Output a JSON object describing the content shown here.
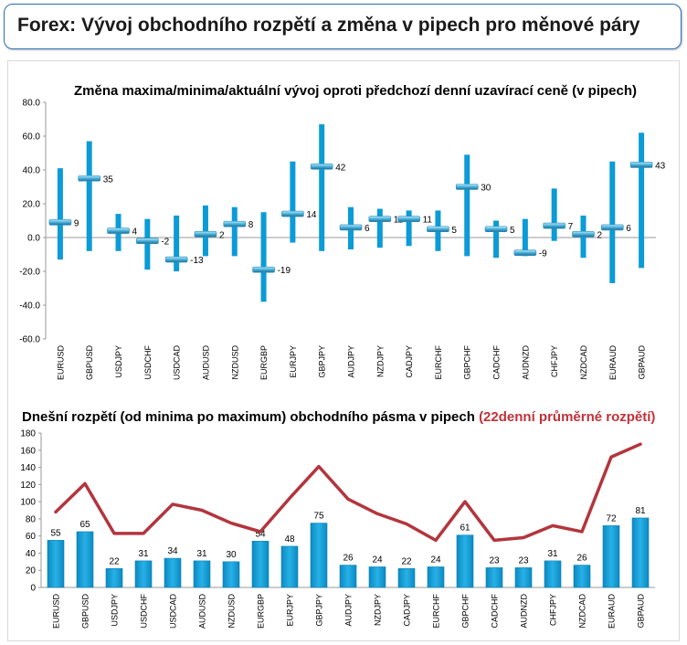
{
  "header": {
    "title": "Forex: Vývoj obchodního rozpětí a změna v pipech pro měnové páry"
  },
  "colors": {
    "bar": "#0b9bd6",
    "marker": "#2f8fbe",
    "line": "#b3353d",
    "accent_text": "#c0313a"
  },
  "chart_data": [
    {
      "type": "range-marker",
      "title": "Změna maxima/minima/aktuální vývoj oproti předchozí denní uzavírací ceně (v pipech)",
      "categories": [
        "EURUSD",
        "GBPUSD",
        "USDJPY",
        "USDCHF",
        "USDCAD",
        "AUDUSD",
        "NZDUSD",
        "EURGBP",
        "EURJPY",
        "GBPJPY",
        "AUDJPY",
        "NZDJPY",
        "CADJPY",
        "EURCHF",
        "GBPCHF",
        "CADCHF",
        "AUDNZD",
        "CHFJPY",
        "NZDCAD",
        "EURAUD",
        "GBPAUD"
      ],
      "high": [
        41,
        57,
        14,
        11,
        13,
        19,
        18,
        15,
        45,
        67,
        18,
        17,
        16,
        16,
        49,
        10,
        11,
        29,
        13,
        45,
        62
      ],
      "low": [
        -13,
        -8,
        -8,
        -19,
        -20,
        -11,
        -11,
        -38,
        -3,
        -8,
        -7,
        -6,
        -5,
        -8,
        -11,
        -12,
        -11,
        -2,
        -12,
        -27,
        -18
      ],
      "current": [
        9,
        35,
        4,
        -2,
        -13,
        2,
        8,
        -19,
        14,
        42,
        6,
        11,
        11,
        5,
        30,
        5,
        -9,
        7,
        2,
        6,
        43
      ],
      "labels": [
        "9",
        "35",
        "4",
        "-2",
        "-13",
        "2",
        "8",
        "-19",
        "14",
        "42",
        "6",
        "11",
        "11",
        "5",
        "30",
        "5",
        "-9",
        "7",
        "2",
        "6",
        "43"
      ],
      "ylim": [
        -60,
        80
      ],
      "yticks": [
        "80.0",
        "60.0",
        "40.0",
        "20.0",
        "0.0",
        "-20.0",
        "-40.0",
        "-60.0"
      ],
      "grid": false
    },
    {
      "type": "bar+line",
      "title": "Dnešní rozpětí (od minima po maximum) obchodního pásma v pipech",
      "title_suffix": "(22denní průměrné rozpětí)",
      "categories": [
        "EURUSD",
        "GBPUSD",
        "USDJPY",
        "USDCHF",
        "USDCAD",
        "AUDUSD",
        "NZDUSD",
        "EURGBP",
        "EURJPY",
        "GBPJPY",
        "AUDJPY",
        "NZDJPY",
        "CADJPY",
        "EURCHF",
        "GBPCHF",
        "CADCHF",
        "AUDNZD",
        "CHFJPY",
        "NZDCAD",
        "EURAUD",
        "GBPAUD"
      ],
      "bars": [
        55,
        65,
        22,
        31,
        34,
        31,
        30,
        54,
        48,
        75,
        26,
        24,
        22,
        24,
        61,
        23,
        23,
        31,
        26,
        72,
        81
      ],
      "bar_labels": [
        "55",
        "65",
        "22",
        "31",
        "34",
        "31",
        "30",
        "54",
        "48",
        "75",
        "26",
        "24",
        "22",
        "24",
        "61",
        "23",
        "23",
        "31",
        "26",
        "72",
        "81"
      ],
      "line": [
        88,
        121,
        63,
        63,
        97,
        90,
        75,
        65,
        104,
        141,
        103,
        86,
        74,
        55,
        100,
        55,
        58,
        72,
        65,
        152,
        167
      ],
      "ylim": [
        0,
        180
      ],
      "yticks": [
        "180",
        "160",
        "140",
        "120",
        "100",
        "80",
        "60",
        "40",
        "20",
        "0"
      ],
      "grid": false
    }
  ]
}
